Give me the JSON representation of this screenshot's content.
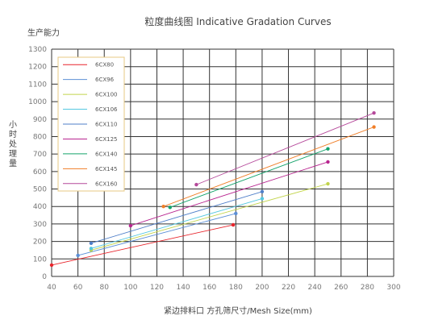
{
  "title": "粒度曲线图 Indicative Gradation Curves",
  "ylabel_top": "生产能力",
  "ylabel_side": "小时处理量",
  "xlabel": "紧边排料口   方孔筛尺寸/Mesh Size(mm)",
  "chart_data": {
    "type": "line",
    "title": "粒度曲线图 Indicative Gradation Curves",
    "xlabel": "紧边排料口   方孔筛尺寸/Mesh Size(mm)",
    "ylabel": "生产能力 小时处理量",
    "xlim": [
      40,
      300
    ],
    "ylim": [
      0,
      1300
    ],
    "x_ticks": [
      40,
      60,
      80,
      100,
      120,
      140,
      160,
      180,
      200,
      220,
      240,
      260,
      280,
      300
    ],
    "y_ticks": [
      0,
      100,
      200,
      300,
      400,
      500,
      600,
      700,
      800,
      900,
      1000,
      1100,
      1200,
      1300
    ],
    "grid": true,
    "legend_position": "top-left",
    "series": [
      {
        "name": "6CX80",
        "color": "#e8242b",
        "x": [
          40,
          178
        ],
        "y": [
          65,
          295
        ]
      },
      {
        "name": "6CX96",
        "color": "#5b8fd6",
        "x": [
          60,
          180
        ],
        "y": [
          120,
          360
        ]
      },
      {
        "name": "6CX100",
        "color": "#c2d44c",
        "x": [
          70,
          250
        ],
        "y": [
          150,
          530
        ]
      },
      {
        "name": "6CX106",
        "color": "#55c8e0",
        "x": [
          70,
          200
        ],
        "y": [
          160,
          445
        ]
      },
      {
        "name": "6CX110",
        "color": "#4f7fc9",
        "x": [
          70,
          200
        ],
        "y": [
          190,
          485
        ]
      },
      {
        "name": "6CX125",
        "color": "#b8248f",
        "x": [
          100,
          250
        ],
        "y": [
          290,
          655
        ]
      },
      {
        "name": "6CX140",
        "color": "#14a36a",
        "x": [
          130,
          250
        ],
        "y": [
          395,
          730
        ]
      },
      {
        "name": "6CX145",
        "color": "#f07e27",
        "x": [
          125,
          285
        ],
        "y": [
          400,
          855
        ]
      },
      {
        "name": "6CX160",
        "color": "#b5489a",
        "x": [
          150,
          285
        ],
        "y": [
          525,
          935
        ]
      }
    ]
  }
}
